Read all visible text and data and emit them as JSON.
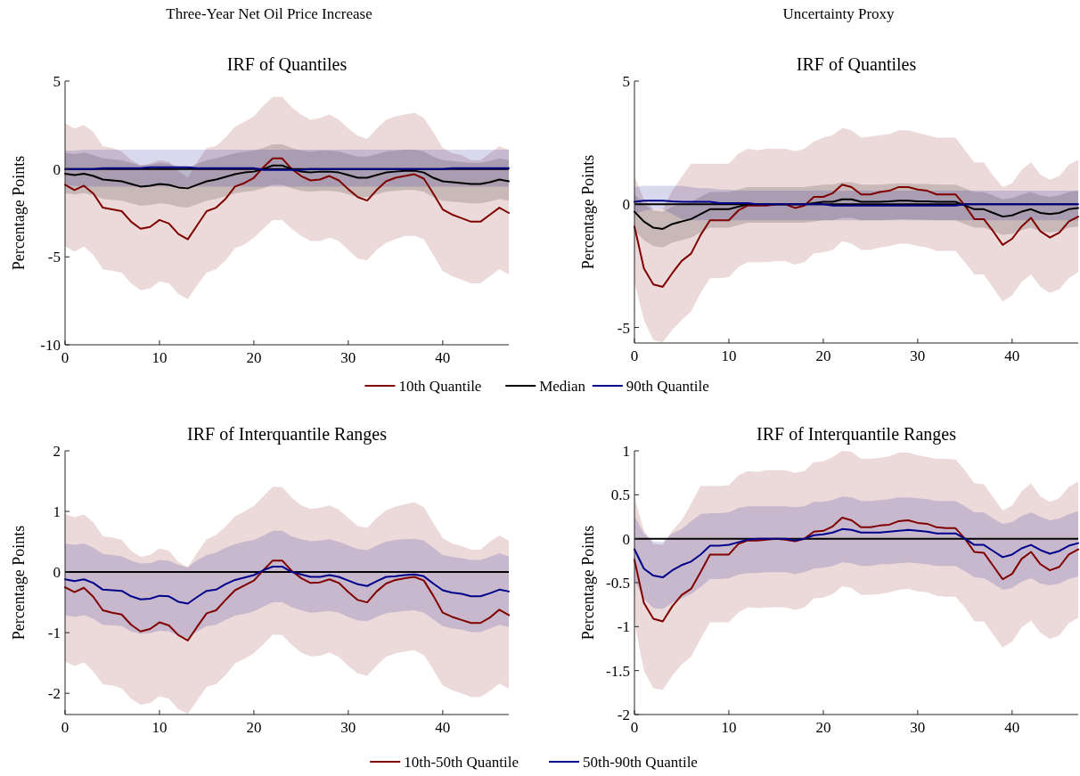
{
  "chart_data": [
    {
      "type": "line",
      "title": "IRF of Quantiles",
      "ylabel": "Percentage Points",
      "annotations": [
        "Three-Year Net Oil Price Increase"
      ],
      "legend": "bottom",
      "xlim": [
        0,
        47
      ],
      "xticks": [
        0,
        10,
        20,
        30,
        40
      ],
      "ylim": [
        -10,
        5
      ],
      "yticks": [
        -10,
        -5,
        0,
        5
      ],
      "ref_lines": [
        {
          "axis": "y",
          "value": 0,
          "color": "#000000"
        }
      ],
      "x": [
        0,
        1,
        2,
        3,
        4,
        5,
        6,
        7,
        8,
        9,
        10,
        11,
        12,
        13,
        14,
        15,
        16,
        17,
        18,
        19,
        20,
        21,
        22,
        23,
        24,
        25,
        26,
        27,
        28,
        29,
        30,
        31,
        32,
        33,
        34,
        35,
        36,
        37,
        38,
        39,
        40,
        41,
        42,
        43,
        44,
        45,
        46,
        47
      ],
      "series": [
        {
          "name": "10th Quantile",
          "color": "#800000",
          "values": [
            -0.9,
            -1.2,
            -0.95,
            -1.4,
            -2.2,
            -2.3,
            -2.4,
            -3.0,
            -3.4,
            -3.3,
            -2.9,
            -3.1,
            -3.7,
            -4.0,
            -3.2,
            -2.4,
            -2.2,
            -1.7,
            -1.0,
            -0.8,
            -0.5,
            0.1,
            0.6,
            0.6,
            0,
            -0.4,
            -0.65,
            -0.6,
            -0.4,
            -0.65,
            -1.15,
            -1.6,
            -1.8,
            -1.2,
            -0.7,
            -0.5,
            -0.4,
            -0.3,
            -0.55,
            -1.4,
            -2.3,
            -2.6,
            -2.8,
            -3.0,
            -3.0,
            -2.6,
            -2.2,
            -2.5
          ],
          "upper": [
            2.6,
            2.3,
            2.5,
            2.1,
            1.3,
            1.2,
            1.0,
            0.5,
            0.2,
            0.3,
            0.5,
            0.4,
            -0.1,
            -0.5,
            0.4,
            1.2,
            1.3,
            1.8,
            2.4,
            2.7,
            3.0,
            3.6,
            4.1,
            4.1,
            3.5,
            3.1,
            2.8,
            2.9,
            3.1,
            2.8,
            2.3,
            1.9,
            1.7,
            2.3,
            2.8,
            3.0,
            3.1,
            3.2,
            2.9,
            2.1,
            1.2,
            0.9,
            0.8,
            0.5,
            0.5,
            0.9,
            1.3,
            1.1
          ],
          "lower": [
            -4.4,
            -4.7,
            -4.4,
            -4.9,
            -5.7,
            -5.8,
            -5.9,
            -6.5,
            -6.9,
            -6.8,
            -6.4,
            -6.5,
            -7.1,
            -7.4,
            -6.6,
            -5.9,
            -5.7,
            -5.2,
            -4.5,
            -4.3,
            -3.9,
            -3.4,
            -2.9,
            -2.9,
            -3.4,
            -3.8,
            -4.1,
            -4.1,
            -3.9,
            -4.1,
            -4.6,
            -5.1,
            -5.2,
            -4.6,
            -4.2,
            -4.0,
            -3.8,
            -3.8,
            -4.0,
            -4.9,
            -5.8,
            -6.1,
            -6.3,
            -6.5,
            -6.5,
            -6.1,
            -5.7,
            -6.0
          ]
        },
        {
          "name": "Median",
          "color": "#000000",
          "values": [
            -0.27,
            -0.35,
            -0.27,
            -0.4,
            -0.6,
            -0.65,
            -0.7,
            -0.85,
            -1.0,
            -0.95,
            -0.85,
            -0.9,
            -1.05,
            -1.1,
            -0.9,
            -0.7,
            -0.6,
            -0.45,
            -0.3,
            -0.2,
            -0.15,
            0,
            0.2,
            0.2,
            0,
            -0.15,
            -0.2,
            -0.15,
            -0.15,
            -0.2,
            -0.35,
            -0.5,
            -0.5,
            -0.35,
            -0.2,
            -0.15,
            -0.1,
            -0.1,
            -0.2,
            -0.5,
            -0.7,
            -0.75,
            -0.8,
            -0.85,
            -0.85,
            -0.75,
            -0.6,
            -0.7
          ],
          "upper": [
            0.93,
            0.85,
            0.93,
            0.8,
            0.6,
            0.55,
            0.5,
            0.35,
            0.2,
            0.25,
            0.35,
            0.3,
            0.15,
            0.1,
            0.3,
            0.5,
            0.6,
            0.75,
            0.9,
            1.0,
            1.05,
            1.2,
            1.4,
            1.4,
            1.2,
            1.05,
            1.0,
            1.05,
            1.05,
            1.0,
            0.85,
            0.7,
            0.7,
            0.85,
            1.0,
            1.05,
            1.1,
            1.1,
            1.0,
            0.7,
            0.5,
            0.45,
            0.4,
            0.35,
            0.35,
            0.45,
            0.6,
            0.5
          ],
          "lower": [
            -1.37,
            -1.45,
            -1.37,
            -1.5,
            -1.7,
            -1.75,
            -1.8,
            -1.95,
            -2.1,
            -2.05,
            -1.95,
            -2.0,
            -2.15,
            -2.2,
            -2.0,
            -1.8,
            -1.7,
            -1.55,
            -1.4,
            -1.3,
            -1.25,
            -1.1,
            -0.9,
            -0.9,
            -1.1,
            -1.25,
            -1.3,
            -1.25,
            -1.25,
            -1.3,
            -1.45,
            -1.6,
            -1.6,
            -1.45,
            -1.3,
            -1.25,
            -1.2,
            -1.2,
            -1.3,
            -1.6,
            -1.8,
            -1.85,
            -1.9,
            -1.95,
            -1.95,
            -1.85,
            -1.7,
            -1.8
          ]
        },
        {
          "name": "90th Quantile",
          "color": "#00008b",
          "values": [
            0,
            0,
            0,
            0,
            0.05,
            0.05,
            0.05,
            0.05,
            0.05,
            0.1,
            0.1,
            0.1,
            0.1,
            0.1,
            0.05,
            0.05,
            0.05,
            0.05,
            0.05,
            0.05,
            0.05,
            -0.05,
            -0.05,
            -0.05,
            -0.05,
            -0.05,
            0,
            0,
            0,
            0,
            0,
            0,
            0,
            0,
            0,
            0,
            0,
            0,
            0,
            0,
            0,
            0.05,
            0.05,
            0.05,
            0.05,
            0.05,
            0.05,
            0.05
          ],
          "upper": [
            1.05,
            1.05,
            1.1,
            1.1,
            1.1,
            1.1,
            1.1,
            1.1,
            1.1,
            1.1,
            1.1,
            1.1,
            1.1,
            1.1,
            1.1,
            1.1,
            1.1,
            1.1,
            1.1,
            1.1,
            1.1,
            1.1,
            1.1,
            1.1,
            1.1,
            1.1,
            1.1,
            1.1,
            1.1,
            1.1,
            1.1,
            1.1,
            1.1,
            1.1,
            1.1,
            1.1,
            1.1,
            1.1,
            1.1,
            1.1,
            1.1,
            1.1,
            1.1,
            1.1,
            1.1,
            1.1,
            1.1,
            1.1
          ],
          "lower": [
            -0.95,
            -0.95,
            -1.0,
            -1.0,
            -1.0,
            -1.0,
            -1.0,
            -1.0,
            -1.0,
            -1.0,
            -1.0,
            -1.0,
            -1.0,
            -1.0,
            -1.0,
            -1.0,
            -1.0,
            -1.0,
            -1.0,
            -1.0,
            -1.0,
            -1.0,
            -1.0,
            -1.0,
            -1.0,
            -1.0,
            -1.0,
            -1.0,
            -1.0,
            -1.0,
            -1.0,
            -1.0,
            -1.0,
            -1.0,
            -1.0,
            -1.0,
            -1.0,
            -1.0,
            -1.0,
            -1.0,
            -1.0,
            -1.0,
            -1.0,
            -1.0,
            -1.0,
            -1.0,
            -1.0,
            -1.0
          ]
        }
      ]
    },
    {
      "type": "line",
      "title": "IRF of Quantiles",
      "ylabel": "Percentage Points",
      "annotations": [
        "Uncertainty Proxy"
      ],
      "xlim": [
        0,
        47
      ],
      "xticks": [
        0,
        10,
        20,
        30,
        40
      ],
      "ylim": [
        -5.63,
        5
      ],
      "yticks": [
        -5,
        0,
        5
      ],
      "ref_lines": [
        {
          "axis": "y",
          "value": 0,
          "color": "#000000"
        }
      ],
      "x": [
        0,
        1,
        2,
        3,
        4,
        5,
        6,
        7,
        8,
        9,
        10,
        11,
        12,
        13,
        14,
        15,
        16,
        17,
        18,
        19,
        20,
        21,
        22,
        23,
        24,
        25,
        26,
        27,
        28,
        29,
        30,
        31,
        32,
        33,
        34,
        35,
        36,
        37,
        38,
        39,
        40,
        41,
        42,
        43,
        44,
        45,
        46,
        47
      ],
      "series": [
        {
          "color": "#800000",
          "values": [
            -0.9,
            -2.6,
            -3.25,
            -3.35,
            -2.8,
            -2.3,
            -2.0,
            -1.25,
            -0.65,
            -0.65,
            -0.65,
            -0.25,
            -0.05,
            -0.05,
            -0.05,
            0,
            0,
            -0.15,
            -0.05,
            0.3,
            0.3,
            0.45,
            0.8,
            0.7,
            0.4,
            0.4,
            0.5,
            0.55,
            0.7,
            0.7,
            0.6,
            0.55,
            0.4,
            0.4,
            0.4,
            -0.05,
            -0.6,
            -0.6,
            -1.1,
            -1.65,
            -1.4,
            -0.9,
            -0.55,
            -1.1,
            -1.35,
            -1.15,
            -0.7,
            -0.5
          ],
          "upper": [
            1.15,
            0.2,
            -0.2,
            -0.2,
            0.55,
            1.1,
            1.65,
            1.65,
            1.65,
            1.65,
            1.65,
            2.05,
            2.25,
            2.2,
            2.25,
            2.25,
            2.25,
            2.15,
            2.25,
            2.55,
            2.7,
            2.8,
            3.1,
            3.0,
            2.7,
            2.75,
            2.8,
            2.85,
            3.0,
            3.0,
            2.9,
            2.8,
            2.7,
            2.7,
            2.7,
            2.2,
            1.7,
            1.7,
            1.15,
            0.7,
            0.85,
            1.4,
            1.7,
            1.2,
            1.0,
            1.15,
            1.6,
            1.8
          ],
          "lower": [
            -3.15,
            -4.7,
            -5.5,
            -5.6,
            -5.1,
            -4.7,
            -4.35,
            -3.6,
            -3.0,
            -3.0,
            -2.95,
            -2.55,
            -2.35,
            -2.35,
            -2.35,
            -2.3,
            -2.3,
            -2.45,
            -2.35,
            -2.0,
            -1.95,
            -1.85,
            -1.5,
            -1.6,
            -1.85,
            -1.85,
            -1.75,
            -1.7,
            -1.6,
            -1.6,
            -1.7,
            -1.75,
            -1.9,
            -1.9,
            -1.9,
            -2.35,
            -2.85,
            -2.85,
            -3.4,
            -3.95,
            -3.7,
            -3.15,
            -2.85,
            -3.35,
            -3.6,
            -3.45,
            -3.0,
            -2.75
          ]
        },
        {
          "color": "#000000",
          "values": [
            -0.3,
            -0.7,
            -0.95,
            -1.0,
            -0.8,
            -0.7,
            -0.6,
            -0.4,
            -0.2,
            -0.2,
            -0.2,
            -0.1,
            0,
            0,
            0,
            0,
            0,
            0,
            0,
            0.05,
            0.1,
            0.1,
            0.2,
            0.2,
            0.1,
            0.1,
            0.1,
            0.12,
            0.15,
            0.15,
            0.12,
            0.12,
            0.1,
            0.1,
            0.1,
            -0.05,
            -0.2,
            -0.2,
            -0.35,
            -0.5,
            -0.45,
            -0.3,
            -0.2,
            -0.35,
            -0.4,
            -0.35,
            -0.2,
            -0.15
          ],
          "upper": [
            0.4,
            0,
            -0.25,
            -0.3,
            -0.1,
            0,
            0.1,
            0.3,
            0.5,
            0.5,
            0.5,
            0.6,
            0.7,
            0.7,
            0.7,
            0.7,
            0.7,
            0.7,
            0.7,
            0.75,
            0.8,
            0.8,
            0.9,
            0.9,
            0.8,
            0.8,
            0.8,
            0.82,
            0.85,
            0.85,
            0.82,
            0.82,
            0.8,
            0.8,
            0.8,
            0.65,
            0.5,
            0.5,
            0.35,
            0.2,
            0.25,
            0.4,
            0.5,
            0.35,
            0.3,
            0.35,
            0.5,
            0.55
          ],
          "lower": [
            -1.05,
            -1.45,
            -1.7,
            -1.75,
            -1.55,
            -1.45,
            -1.35,
            -1.15,
            -0.95,
            -0.95,
            -0.95,
            -0.85,
            -0.75,
            -0.75,
            -0.75,
            -0.75,
            -0.75,
            -0.75,
            -0.75,
            -0.7,
            -0.65,
            -0.65,
            -0.55,
            -0.55,
            -0.65,
            -0.65,
            -0.65,
            -0.63,
            -0.6,
            -0.6,
            -0.63,
            -0.63,
            -0.65,
            -0.65,
            -0.65,
            -0.8,
            -0.95,
            -0.95,
            -1.1,
            -1.25,
            -1.2,
            -1.05,
            -0.95,
            -1.1,
            -1.15,
            -1.1,
            -0.95,
            -0.9
          ]
        },
        {
          "color": "#00008b",
          "values": [
            0.1,
            0.15,
            0.15,
            0.15,
            0.12,
            0.1,
            0.1,
            0.1,
            0.1,
            0.05,
            0.05,
            0.05,
            0.05,
            0,
            0,
            0,
            0,
            0,
            0,
            0,
            0,
            -0.05,
            -0.05,
            -0.05,
            -0.05,
            -0.05,
            -0.05,
            -0.05,
            -0.05,
            -0.05,
            -0.05,
            -0.05,
            -0.05,
            -0.05,
            -0.05,
            0,
            0,
            0,
            0,
            0,
            0,
            0,
            0,
            0,
            0,
            0,
            0,
            0
          ],
          "upper": [
            0.7,
            0.75,
            0.75,
            0.75,
            0.75,
            0.75,
            0.7,
            0.65,
            0.65,
            0.6,
            0.6,
            0.55,
            0.55,
            0.55,
            0.55,
            0.55,
            0.55,
            0.55,
            0.55,
            0.55,
            0.55,
            0.55,
            0.55,
            0.55,
            0.55,
            0.55,
            0.55,
            0.55,
            0.55,
            0.55,
            0.55,
            0.55,
            0.55,
            0.55,
            0.55,
            0.55,
            0.55,
            0.55,
            0.55,
            0.55,
            0.55,
            0.55,
            0.55,
            0.55,
            0.55,
            0.55,
            0.55,
            0.55
          ],
          "lower": [
            -0.4,
            -0.25,
            -0.2,
            -0.2,
            -0.4,
            -0.6,
            -0.65,
            -0.65,
            -0.65,
            -0.65,
            -0.65,
            -0.65,
            -0.65,
            -0.65,
            -0.65,
            -0.65,
            -0.65,
            -0.65,
            -0.65,
            -0.65,
            -0.65,
            -0.65,
            -0.65,
            -0.65,
            -0.65,
            -0.65,
            -0.65,
            -0.65,
            -0.65,
            -0.65,
            -0.65,
            -0.65,
            -0.65,
            -0.65,
            -0.65,
            -0.65,
            -0.65,
            -0.65,
            -0.65,
            -0.65,
            -0.65,
            -0.65,
            -0.65,
            -0.65,
            -0.65,
            -0.65,
            -0.65,
            -0.65
          ]
        }
      ]
    },
    {
      "type": "line",
      "title": "IRF of Interquantile Ranges",
      "ylabel": "Percentage Points",
      "legend": "bottom",
      "xlim": [
        0,
        47
      ],
      "xticks": [
        0,
        10,
        20,
        30,
        40
      ],
      "ylim": [
        -2.35,
        2
      ],
      "yticks": [
        -2,
        -1,
        0,
        1,
        2
      ],
      "ref_lines": [
        {
          "axis": "y",
          "value": 0,
          "color": "#000000"
        }
      ],
      "x": [
        0,
        1,
        2,
        3,
        4,
        5,
        6,
        7,
        8,
        9,
        10,
        11,
        12,
        13,
        14,
        15,
        16,
        17,
        18,
        19,
        20,
        21,
        22,
        23,
        24,
        25,
        26,
        27,
        28,
        29,
        30,
        31,
        32,
        33,
        34,
        35,
        36,
        37,
        38,
        39,
        40,
        41,
        42,
        43,
        44,
        45,
        46,
        47
      ],
      "series": [
        {
          "name": "10th-50th Quantile",
          "color": "#800000",
          "values": [
            -0.25,
            -0.33,
            -0.26,
            -0.41,
            -0.63,
            -0.67,
            -0.7,
            -0.87,
            -0.98,
            -0.94,
            -0.83,
            -0.88,
            -1.04,
            -1.13,
            -0.9,
            -0.68,
            -0.63,
            -0.46,
            -0.3,
            -0.22,
            -0.14,
            0.03,
            0.19,
            0.19,
            0.02,
            -0.1,
            -0.18,
            -0.17,
            -0.12,
            -0.18,
            -0.33,
            -0.46,
            -0.5,
            -0.32,
            -0.19,
            -0.13,
            -0.1,
            -0.08,
            -0.14,
            -0.39,
            -0.67,
            -0.74,
            -0.79,
            -0.84,
            -0.84,
            -0.75,
            -0.62,
            -0.71
          ],
          "upper": [
            0.96,
            0.9,
            0.95,
            0.82,
            0.59,
            0.57,
            0.53,
            0.35,
            0.25,
            0.28,
            0.39,
            0.35,
            0.17,
            0.08,
            0.32,
            0.54,
            0.61,
            0.75,
            0.92,
            1.0,
            1.09,
            1.25,
            1.41,
            1.4,
            1.23,
            1.1,
            1.04,
            1.06,
            1.1,
            1.03,
            0.89,
            0.76,
            0.73,
            0.89,
            1.02,
            1.08,
            1.12,
            1.15,
            1.07,
            0.81,
            0.56,
            0.47,
            0.43,
            0.37,
            0.37,
            0.5,
            0.6,
            0.52
          ],
          "lower": [
            -1.48,
            -1.55,
            -1.49,
            -1.64,
            -1.85,
            -1.87,
            -1.92,
            -2.09,
            -2.19,
            -2.16,
            -2.05,
            -2.09,
            -2.26,
            -2.34,
            -2.12,
            -1.89,
            -1.85,
            -1.7,
            -1.51,
            -1.43,
            -1.34,
            -1.19,
            -1.03,
            -1.04,
            -1.2,
            -1.33,
            -1.39,
            -1.38,
            -1.33,
            -1.4,
            -1.55,
            -1.67,
            -1.71,
            -1.54,
            -1.4,
            -1.34,
            -1.31,
            -1.29,
            -1.37,
            -1.61,
            -1.87,
            -1.95,
            -2.0,
            -2.06,
            -2.06,
            -1.96,
            -1.84,
            -1.92
          ]
        },
        {
          "name": "50th-90th Quantile",
          "color": "#00008b",
          "values": [
            -0.12,
            -0.15,
            -0.12,
            -0.18,
            -0.29,
            -0.3,
            -0.31,
            -0.4,
            -0.45,
            -0.44,
            -0.39,
            -0.4,
            -0.49,
            -0.52,
            -0.41,
            -0.31,
            -0.29,
            -0.2,
            -0.13,
            -0.09,
            -0.05,
            0.03,
            0.09,
            0.09,
            0,
            -0.04,
            -0.08,
            -0.08,
            -0.05,
            -0.08,
            -0.14,
            -0.2,
            -0.23,
            -0.15,
            -0.08,
            -0.07,
            -0.05,
            -0.04,
            -0.07,
            -0.19,
            -0.3,
            -0.34,
            -0.36,
            -0.4,
            -0.4,
            -0.35,
            -0.29,
            -0.32
          ],
          "upper": [
            0.47,
            0.45,
            0.47,
            0.4,
            0.3,
            0.28,
            0.26,
            0.19,
            0.14,
            0.15,
            0.2,
            0.19,
            0.12,
            0.08,
            0.2,
            0.28,
            0.32,
            0.4,
            0.46,
            0.5,
            0.53,
            0.6,
            0.68,
            0.68,
            0.59,
            0.54,
            0.51,
            0.52,
            0.54,
            0.5,
            0.44,
            0.38,
            0.36,
            0.44,
            0.5,
            0.53,
            0.54,
            0.55,
            0.52,
            0.4,
            0.28,
            0.25,
            0.23,
            0.2,
            0.2,
            0.25,
            0.31,
            0.26
          ],
          "lower": [
            -0.71,
            -0.74,
            -0.71,
            -0.77,
            -0.87,
            -0.88,
            -0.89,
            -0.98,
            -1.02,
            -1.01,
            -0.97,
            -0.98,
            -1.05,
            -1.09,
            -0.98,
            -0.89,
            -0.87,
            -0.79,
            -0.72,
            -0.69,
            -0.65,
            -0.57,
            -0.5,
            -0.5,
            -0.58,
            -0.63,
            -0.67,
            -0.66,
            -0.64,
            -0.67,
            -0.74,
            -0.8,
            -0.81,
            -0.74,
            -0.68,
            -0.66,
            -0.64,
            -0.63,
            -0.67,
            -0.78,
            -0.89,
            -0.93,
            -0.95,
            -0.99,
            -0.99,
            -0.93,
            -0.87,
            -0.91
          ]
        }
      ]
    },
    {
      "type": "line",
      "title": "IRF of Interquantile Ranges",
      "ylabel": "Percentage Points",
      "xlim": [
        0,
        47
      ],
      "xticks": [
        0,
        10,
        20,
        30,
        40
      ],
      "ylim": [
        -2,
        1
      ],
      "yticks": [
        -2,
        -1.5,
        -1,
        -0.5,
        0,
        0.5,
        1
      ],
      "ref_lines": [
        {
          "axis": "y",
          "value": 0,
          "color": "#000000"
        }
      ],
      "x": [
        0,
        1,
        2,
        3,
        4,
        5,
        6,
        7,
        8,
        9,
        10,
        11,
        12,
        13,
        14,
        15,
        16,
        17,
        18,
        19,
        20,
        21,
        22,
        23,
        24,
        25,
        26,
        27,
        28,
        29,
        30,
        31,
        32,
        33,
        34,
        35,
        36,
        37,
        38,
        39,
        40,
        41,
        42,
        43,
        44,
        45,
        46,
        47
      ],
      "series": [
        {
          "color": "#800000",
          "values": [
            -0.24,
            -0.73,
            -0.91,
            -0.94,
            -0.77,
            -0.64,
            -0.57,
            -0.38,
            -0.18,
            -0.18,
            -0.18,
            -0.06,
            -0.02,
            -0.02,
            -0.01,
            0,
            -0.01,
            -0.03,
            0,
            0.08,
            0.09,
            0.14,
            0.24,
            0.21,
            0.13,
            0.13,
            0.15,
            0.16,
            0.2,
            0.21,
            0.18,
            0.17,
            0.13,
            0.12,
            0.12,
            0,
            -0.15,
            -0.16,
            -0.31,
            -0.46,
            -0.4,
            -0.23,
            -0.15,
            -0.29,
            -0.36,
            -0.32,
            -0.18,
            -0.12
          ],
          "upper": [
            0.47,
            0.09,
            -0.06,
            -0.07,
            0.09,
            0.21,
            0.4,
            0.6,
            0.6,
            0.6,
            0.61,
            0.72,
            0.77,
            0.76,
            0.78,
            0.78,
            0.78,
            0.75,
            0.77,
            0.87,
            0.88,
            0.93,
            1.0,
            0.99,
            0.91,
            0.91,
            0.92,
            0.94,
            0.98,
            0.98,
            0.95,
            0.93,
            0.91,
            0.91,
            0.9,
            0.78,
            0.63,
            0.62,
            0.47,
            0.32,
            0.38,
            0.54,
            0.63,
            0.48,
            0.42,
            0.46,
            0.59,
            0.65
          ],
          "lower": [
            -0.95,
            -1.5,
            -1.7,
            -1.72,
            -1.56,
            -1.43,
            -1.34,
            -1.14,
            -0.95,
            -0.95,
            -0.95,
            -0.84,
            -0.78,
            -0.79,
            -0.78,
            -0.78,
            -0.78,
            -0.81,
            -0.78,
            -0.68,
            -0.67,
            -0.63,
            -0.54,
            -0.56,
            -0.64,
            -0.64,
            -0.63,
            -0.61,
            -0.58,
            -0.57,
            -0.6,
            -0.61,
            -0.65,
            -0.66,
            -0.66,
            -0.78,
            -0.94,
            -0.94,
            -1.09,
            -1.24,
            -1.17,
            -1.01,
            -0.93,
            -1.07,
            -1.14,
            -1.1,
            -0.96,
            -0.9
          ]
        },
        {
          "color": "#00008b",
          "values": [
            -0.12,
            -0.34,
            -0.42,
            -0.44,
            -0.36,
            -0.3,
            -0.26,
            -0.18,
            -0.08,
            -0.08,
            -0.07,
            -0.04,
            -0.01,
            0,
            0,
            0,
            0,
            -0.02,
            0,
            0.04,
            0.05,
            0.07,
            0.11,
            0.1,
            0.07,
            0.07,
            0.07,
            0.08,
            0.09,
            0.1,
            0.09,
            0.08,
            0.06,
            0.06,
            0.06,
            0,
            -0.07,
            -0.07,
            -0.14,
            -0.21,
            -0.18,
            -0.11,
            -0.07,
            -0.13,
            -0.17,
            -0.14,
            -0.08,
            -0.05
          ],
          "upper": [
            0.26,
            0.06,
            -0.03,
            -0.04,
            0.06,
            0.11,
            0.2,
            0.28,
            0.29,
            0.29,
            0.3,
            0.35,
            0.37,
            0.37,
            0.37,
            0.37,
            0.37,
            0.36,
            0.37,
            0.42,
            0.42,
            0.44,
            0.48,
            0.47,
            0.43,
            0.43,
            0.44,
            0.45,
            0.47,
            0.47,
            0.46,
            0.45,
            0.43,
            0.43,
            0.43,
            0.37,
            0.3,
            0.3,
            0.23,
            0.17,
            0.19,
            0.26,
            0.3,
            0.25,
            0.21,
            0.23,
            0.28,
            0.31
          ],
          "lower": [
            -0.48,
            -0.68,
            -0.79,
            -0.8,
            -0.73,
            -0.68,
            -0.63,
            -0.55,
            -0.46,
            -0.46,
            -0.45,
            -0.41,
            -0.39,
            -0.39,
            -0.38,
            -0.38,
            -0.38,
            -0.4,
            -0.38,
            -0.34,
            -0.33,
            -0.31,
            -0.27,
            -0.28,
            -0.31,
            -0.31,
            -0.29,
            -0.29,
            -0.28,
            -0.27,
            -0.28,
            -0.29,
            -0.31,
            -0.31,
            -0.31,
            -0.37,
            -0.44,
            -0.45,
            -0.51,
            -0.58,
            -0.56,
            -0.49,
            -0.45,
            -0.51,
            -0.53,
            -0.51,
            -0.46,
            -0.43
          ]
        }
      ]
    }
  ]
}
